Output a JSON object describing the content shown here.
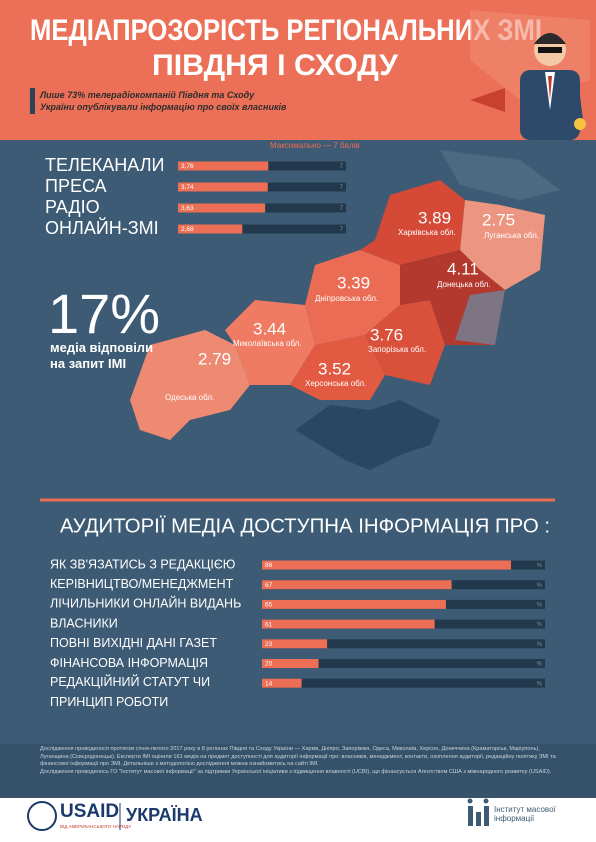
{
  "header": {
    "title_line1": "МЕДІАПРОЗОРІСТЬ РЕГІОНАЛЬНИХ ЗМІ",
    "title_line2": "ПІВДНЯ І СХОДУ",
    "subtitle": "Лише 73% телерадіокомпаній Півдня та Сходу України опублікували інформацію про своїх власників"
  },
  "ratings": {
    "type": "bar",
    "note": "Максимально — 7 балів",
    "categories": [
      "ТЕЛЕКАНАЛИ",
      "ПРЕСА",
      "РАДІО",
      "ОНЛАЙН-ЗМІ"
    ],
    "values": [
      3.76,
      3.74,
      3.63,
      2.68
    ],
    "value_labels": [
      "3,76",
      "3,74",
      "3,63",
      "2,68"
    ],
    "xlim": [
      0,
      7
    ],
    "color": "#ec6e55",
    "track_color": "#22384d"
  },
  "stat": {
    "value": "17%",
    "text": "медіа відповіли на запит IMI"
  },
  "map": {
    "regions": [
      {
        "name": "Харківська обл.",
        "score": 3.89
      },
      {
        "name": "Луганська обл.",
        "score": 2.75
      },
      {
        "name": "Донецька обл.",
        "score": 4.11
      },
      {
        "name": "Дніпровська обл.",
        "score": 3.39
      },
      {
        "name": "Миколаївська обл.",
        "score": 3.44
      },
      {
        "name": "Одеська обл.",
        "score": 2.79
      },
      {
        "name": "Запорізька обл.",
        "score": 3.76
      },
      {
        "name": "Херсонська обл.",
        "score": 3.52
      }
    ]
  },
  "audience": {
    "type": "bar",
    "title": "АУДИТОРІЇ МЕДІА ДОСТУПНА ІНФОРМАЦІЯ ПРО :",
    "categories": [
      "ЯК ЗВ'ЯЗАТИСЬ З РЕДАКЦІЄЮ",
      "КЕРІВНИЦТВО/МЕНЕДЖМЕНТ",
      "ЛІЧИЛЬНИКИ ОНЛАЙН ВИДАНЬ",
      "ВЛАСНИКИ",
      "ПОВНІ ВИХІДНІ ДАНІ ГАЗЕТ",
      "ФІНАНСОВА ІНФОРМАЦІЯ",
      "РЕДАКЦІЙНИЙ СТАТУТ ЧИ ПРИНЦИП РОБОТИ"
    ],
    "values": [
      88,
      67,
      65,
      61,
      23,
      20,
      14
    ],
    "unit": "%",
    "xlim": [
      0,
      100
    ],
    "color": "#ec6e55",
    "track_color": "#22384d"
  },
  "footer": {
    "paragraph1": "Дослідження проводилося протягом січня-лютого 2017 року в 8 регіонах Півдня та Сходу України — Харків, Дніпро, Запоріжжя, Одеса, Миколаїв, Херсон, Донеччина (Краматорськ, Маріуполь), Луганщина (Сєвєродонецьк). Експерти IMI оцінили 161 медіа на предмет доступності для аудиторії інформації про: власників, менеджмент, контакти, охоплення аудиторії, редакційну політику ЗМІ та фінансової інформації про ЗМІ. Детальніше з методологією дослідження можна ознайомитись на сайті IMI.",
    "paragraph2": "Дослідження проводилось ГО \"Інститут масової інформації\" за підтримки Української ініціативи з підвищення влавності (UCBI), що фінансується Агентством США з міжнародного розвитку (USAID).",
    "usaid": "USAID",
    "usaid_tagline": "ВІД АМЕРИКАНСЬКОГО НАРОДУ",
    "ukraine": "УКРАЇНА",
    "imi": "Інститут масової інформації"
  }
}
